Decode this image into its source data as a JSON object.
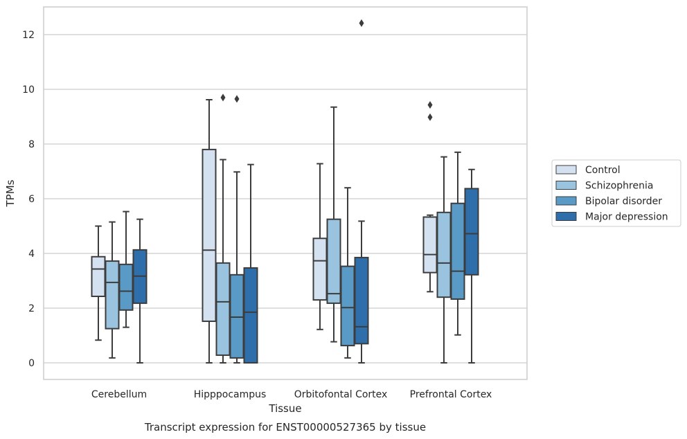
{
  "chart_data": {
    "type": "box",
    "title": "",
    "xlabel": "Tissue",
    "ylabel": "TPMs",
    "caption": "Transcript expression for ENST00000527365 by tissue",
    "categories": [
      "Cerebellum",
      "Hipppocampus",
      "Orbitofontal Cortex",
      "Prefrontal Cortex"
    ],
    "ylim": [
      -0.6,
      13.0
    ],
    "yticks": [
      0,
      2,
      4,
      6,
      8,
      10,
      12
    ],
    "grid": true,
    "legend_position": "right",
    "series": [
      {
        "name": "Control",
        "color": "#d3e1f1",
        "boxes": [
          {
            "whislo": 0.83,
            "q1": 2.43,
            "med": 3.43,
            "q3": 3.88,
            "whishi": 5.0,
            "fliers": []
          },
          {
            "whislo": 0.0,
            "q1": 1.52,
            "med": 4.12,
            "q3": 7.8,
            "whishi": 9.62,
            "fliers": []
          },
          {
            "whislo": 1.22,
            "q1": 2.3,
            "med": 3.73,
            "q3": 4.55,
            "whishi": 7.28,
            "fliers": []
          },
          {
            "whislo": 2.6,
            "q1": 3.3,
            "med": 3.96,
            "q3": 5.33,
            "whishi": 5.4,
            "fliers": [
              9.43,
              8.98
            ]
          }
        ]
      },
      {
        "name": "Schizophrenia",
        "color": "#99c3de",
        "boxes": [
          {
            "whislo": 0.18,
            "q1": 1.25,
            "med": 2.94,
            "q3": 3.72,
            "whishi": 5.15,
            "fliers": []
          },
          {
            "whislo": 0.0,
            "q1": 0.28,
            "med": 2.23,
            "q3": 3.65,
            "whishi": 7.43,
            "fliers": [
              9.7
            ]
          },
          {
            "whislo": 0.77,
            "q1": 2.18,
            "med": 2.53,
            "q3": 5.25,
            "whishi": 9.35,
            "fliers": []
          },
          {
            "whislo": 0.0,
            "q1": 2.4,
            "med": 3.65,
            "q3": 5.5,
            "whishi": 7.53,
            "fliers": []
          }
        ]
      },
      {
        "name": "Bipolar disorder",
        "color": "#5a9ac6",
        "boxes": [
          {
            "whislo": 1.3,
            "q1": 1.93,
            "med": 2.62,
            "q3": 3.6,
            "whishi": 5.53,
            "fliers": []
          },
          {
            "whislo": 0.0,
            "q1": 0.18,
            "med": 1.67,
            "q3": 3.22,
            "whishi": 6.98,
            "fliers": [
              9.65
            ]
          },
          {
            "whislo": 0.18,
            "q1": 0.63,
            "med": 2.02,
            "q3": 3.53,
            "whishi": 6.4,
            "fliers": []
          },
          {
            "whislo": 1.02,
            "q1": 2.33,
            "med": 3.35,
            "q3": 5.83,
            "whishi": 7.7,
            "fliers": []
          }
        ]
      },
      {
        "name": "Major depression",
        "color": "#2e6eaa",
        "boxes": [
          {
            "whislo": 0.0,
            "q1": 2.18,
            "med": 3.17,
            "q3": 4.13,
            "whishi": 5.25,
            "fliers": []
          },
          {
            "whislo": 0.0,
            "q1": 0.0,
            "med": 1.85,
            "q3": 3.47,
            "whishi": 7.25,
            "fliers": []
          },
          {
            "whislo": 0.0,
            "q1": 0.7,
            "med": 1.32,
            "q3": 3.85,
            "whishi": 5.18,
            "fliers": [
              12.42
            ]
          },
          {
            "whislo": 0.0,
            "q1": 3.22,
            "med": 4.72,
            "q3": 6.37,
            "whishi": 7.07,
            "fliers": []
          }
        ]
      }
    ]
  }
}
